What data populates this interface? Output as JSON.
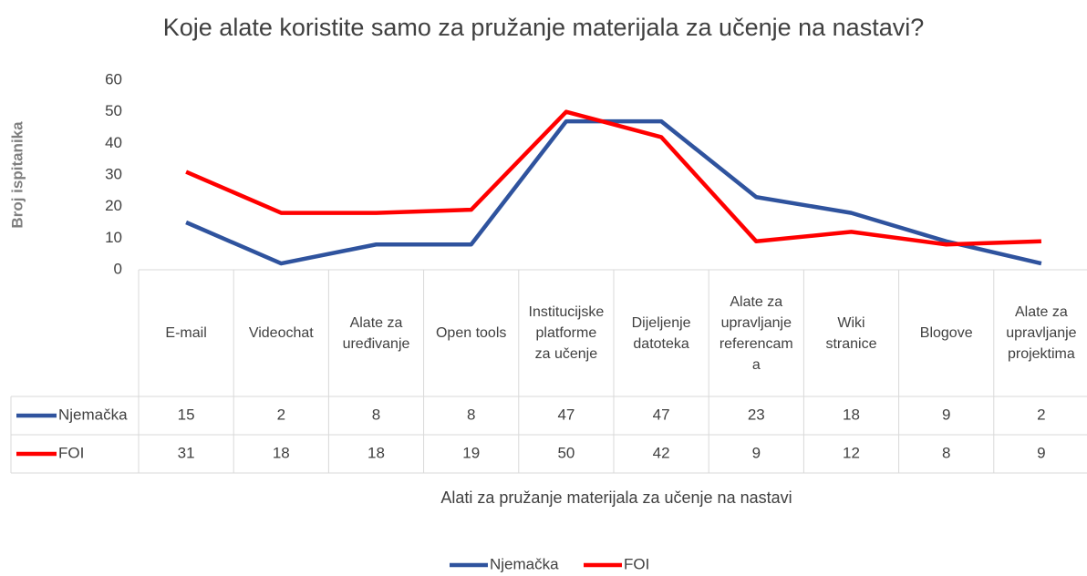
{
  "chart_data": {
    "type": "line",
    "title": "Koje alate koristite samo za pružanje materijala za učenje na nastavi?",
    "y_label": "Broj ispitanika",
    "x_label": "Alati za pružanje materijala za učenje na nastavi",
    "categories": [
      "E-mail",
      "Videochat",
      "Alate za\nuređivanje",
      "Open tools",
      "Institucijske\nplatforme\nza učenje",
      "Dijeljenje\ndatoteka",
      "Alate za\nupravljanje\nreferencam\na",
      "Wiki\nstranice",
      "Blogove",
      "Alate za\nupravljanje\nprojektima"
    ],
    "series": [
      {
        "name": "Njemačka",
        "color": "#2f539e",
        "values": [
          15,
          2,
          8,
          8,
          47,
          47,
          23,
          18,
          9,
          2
        ]
      },
      {
        "name": "FOI",
        "color": "#ff0000",
        "values": [
          31,
          18,
          18,
          19,
          50,
          42,
          9,
          12,
          8,
          9
        ]
      }
    ],
    "ylim": [
      0,
      60
    ],
    "yticks": [
      0,
      10,
      20,
      30,
      40,
      50,
      60
    ],
    "grid": false,
    "legend": "bottom",
    "data_table": true
  }
}
